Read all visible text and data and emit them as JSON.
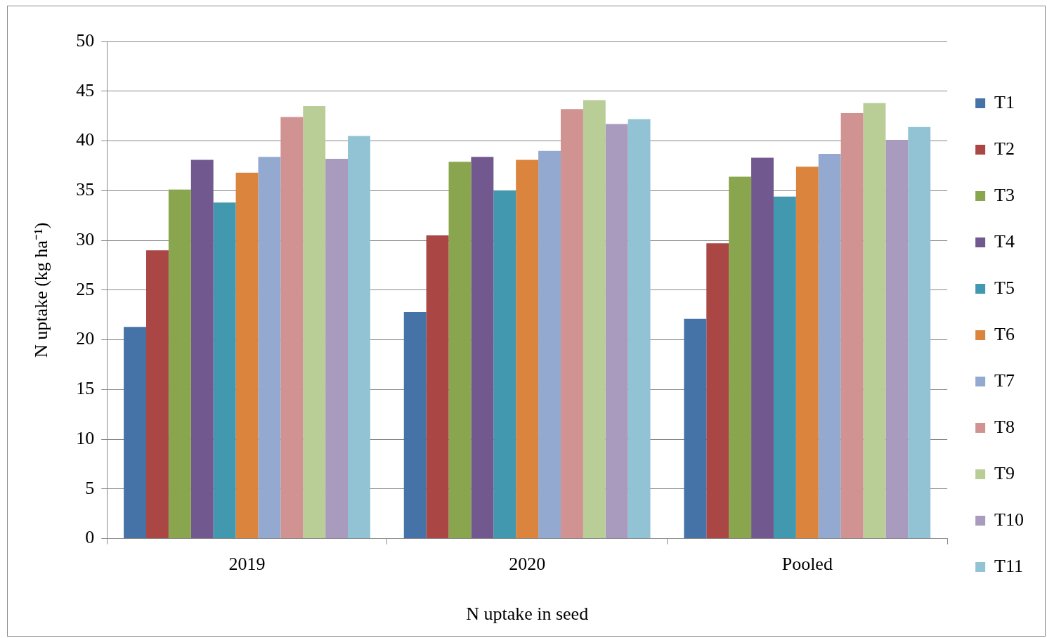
{
  "chart_data": {
    "type": "bar",
    "xlabel": "N uptake in seed",
    "ylabel": "N uptake (kg ha⁻¹)",
    "categories": [
      "2019",
      "2020",
      "Pooled"
    ],
    "series": [
      {
        "name": "T1",
        "color": "#4572a7",
        "values": [
          21.3,
          22.8,
          22.1
        ]
      },
      {
        "name": "T2",
        "color": "#aa4643",
        "values": [
          29.0,
          30.5,
          29.7
        ]
      },
      {
        "name": "T3",
        "color": "#89a54e",
        "values": [
          35.1,
          37.9,
          36.4
        ]
      },
      {
        "name": "T4",
        "color": "#71588f",
        "values": [
          38.1,
          38.4,
          38.3
        ]
      },
      {
        "name": "T5",
        "color": "#4198af",
        "values": [
          33.8,
          35.0,
          34.4
        ]
      },
      {
        "name": "T6",
        "color": "#db843d",
        "values": [
          36.8,
          38.1,
          37.4
        ]
      },
      {
        "name": "T7",
        "color": "#93a9cf",
        "values": [
          38.4,
          39.0,
          38.7
        ]
      },
      {
        "name": "T8",
        "color": "#d19392",
        "values": [
          42.4,
          43.2,
          42.8
        ]
      },
      {
        "name": "T9",
        "color": "#b9cd96",
        "values": [
          43.5,
          44.1,
          43.8
        ]
      },
      {
        "name": "T10",
        "color": "#a99bbd",
        "values": [
          38.2,
          41.7,
          40.1
        ]
      },
      {
        "name": "T11",
        "color": "#92c3d5",
        "values": [
          40.5,
          42.2,
          41.4
        ]
      }
    ],
    "ylim": [
      0,
      50
    ],
    "yticks": [
      0,
      5,
      10,
      15,
      20,
      25,
      30,
      35,
      40,
      45,
      50
    ],
    "grid": "y",
    "legend": "right"
  }
}
